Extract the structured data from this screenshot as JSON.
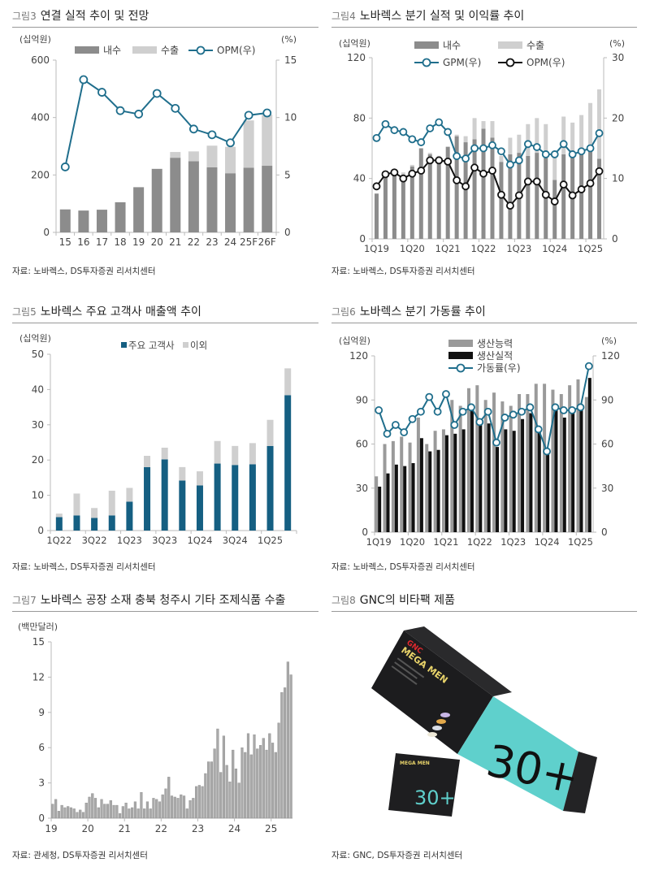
{
  "figures": [
    {
      "num": "그림3",
      "title": "연결 실적 추이 및 전망",
      "source": "자료: 노바렉스, DS투자증권 리서치센터"
    },
    {
      "num": "그림4",
      "title": "노바렉스 분기 실적 및 이익률 추이",
      "source": "자료: 노바렉스, DS투자증권 리서치센터"
    },
    {
      "num": "그림5",
      "title": "노바렉스 주요 고객사 매출액 추이",
      "source": "자료: 노바렉스, DS투자증권 리서치센터"
    },
    {
      "num": "그림6",
      "title": "노바렉스 분기 가동률 추이",
      "source": "자료: 노바렉스, DS투자증권 리서치센터"
    },
    {
      "num": "그림7",
      "title": "노바렉스 공장 소재 충북 청주시 기타 조제식품 수출",
      "source": "자료: 관세청, DS투자증권 리서치센터"
    },
    {
      "num": "그림8",
      "title": "GNC의 비타팩 제품",
      "source": "자료: GNC, DS투자증권 리서치센터"
    }
  ],
  "product_image": {
    "brand": "GNC",
    "name": "MEGA MEN",
    "badge": "30+",
    "pouch_badge": "30+",
    "colors": {
      "box": "#1c1c1e",
      "teal": "#5fd0cc"
    }
  },
  "colors": {
    "domestic": "#8c8c8c",
    "export": "#cfcfcf",
    "line_teal": "#1f6e8c",
    "major": "#155f82",
    "other": "#cfcfcf",
    "capacity": "#9a9a9a",
    "actual": "#111111",
    "opm_black": "#111111"
  },
  "chart_data": [
    {
      "type": "bar+line",
      "stacked": true,
      "ylabel": "(십억원)",
      "y2label": "(%)",
      "ylim": [
        0,
        600
      ],
      "y2lim": [
        0,
        15
      ],
      "yticks": [
        0,
        200,
        400,
        600
      ],
      "y2ticks": [
        0,
        5,
        10,
        15
      ],
      "categories": [
        "15",
        "16",
        "17",
        "18",
        "19",
        "20",
        "21",
        "22",
        "23",
        "24",
        "25F",
        "26F"
      ],
      "series": [
        {
          "name": "내수",
          "kind": "bar",
          "values": [
            80,
            76,
            79,
            105,
            157,
            221,
            260,
            248,
            227,
            206,
            225,
            232
          ]
        },
        {
          "name": "수출",
          "kind": "bar",
          "values": [
            0,
            0,
            0,
            0,
            1,
            1,
            20,
            34,
            75,
            92,
            165,
            178
          ]
        },
        {
          "name": "OPM(우)",
          "kind": "line",
          "axis": "right",
          "values": [
            5.7,
            13.3,
            12.2,
            10.6,
            10.3,
            12.1,
            10.8,
            9.0,
            8.5,
            7.8,
            10.2,
            10.4
          ]
        }
      ],
      "legend": "top",
      "grid": false
    },
    {
      "type": "bar+line",
      "stacked": true,
      "ylabel": "(십억원)",
      "y2label": "(%)",
      "ylim": [
        0,
        120
      ],
      "y2lim": [
        0,
        30
      ],
      "yticks": [
        0,
        40,
        80,
        120
      ],
      "y2ticks": [
        0,
        10,
        20,
        30
      ],
      "categories": [
        "1Q19",
        "2Q19",
        "3Q19",
        "4Q19",
        "1Q20",
        "2Q20",
        "3Q20",
        "4Q20",
        "1Q21",
        "2Q21",
        "3Q21",
        "4Q21",
        "1Q22",
        "2Q22",
        "3Q22",
        "4Q22",
        "1Q23",
        "2Q23",
        "3Q23",
        "4Q23",
        "1Q24",
        "2Q24",
        "3Q24",
        "4Q24",
        "1Q25",
        "2Q25"
      ],
      "xticklabels": [
        "1Q19",
        "1Q20",
        "1Q21",
        "1Q22",
        "1Q23",
        "1Q24",
        "1Q25"
      ],
      "series": [
        {
          "name": "내수",
          "kind": "bar",
          "values": [
            30,
            42,
            44,
            40,
            48,
            60,
            56,
            50,
            61,
            68,
            64,
            66,
            73,
            67,
            51,
            56,
            57,
            55,
            57,
            55,
            39,
            56,
            56,
            58,
            60,
            53
          ]
        },
        {
          "name": "수출",
          "kind": "bar",
          "values": [
            0,
            0,
            0,
            4,
            1,
            0,
            1,
            5,
            0,
            1,
            4,
            14,
            5,
            11,
            4,
            11,
            12,
            21,
            23,
            21,
            16,
            25,
            21,
            24,
            30,
            46
          ]
        },
        {
          "name": "GPM(우)",
          "kind": "line",
          "axis": "right",
          "values": [
            16.7,
            19.0,
            18.0,
            17.7,
            16.5,
            16.0,
            18.3,
            19.3,
            17.7,
            13.7,
            13.3,
            15.0,
            15.0,
            15.5,
            14.5,
            12.3,
            13.0,
            15.7,
            15.2,
            14.0,
            14.0,
            15.7,
            14.0,
            14.5,
            15.0,
            17.5
          ]
        },
        {
          "name": "OPM(우)",
          "kind": "line",
          "axis": "right",
          "values": [
            8.7,
            10.7,
            11.0,
            10.0,
            10.8,
            11.3,
            13.0,
            13.0,
            12.8,
            9.7,
            8.7,
            11.8,
            10.8,
            11.3,
            7.3,
            5.5,
            7.2,
            9.5,
            9.5,
            7.3,
            6.2,
            9.0,
            7.2,
            8.2,
            9.2,
            11.2
          ]
        }
      ],
      "legend": "top",
      "grid": false
    },
    {
      "type": "bar",
      "stacked": true,
      "ylabel": "(십억원)",
      "ylim": [
        0,
        50
      ],
      "yticks": [
        0,
        10,
        20,
        30,
        40,
        50
      ],
      "categories": [
        "1Q22",
        "2Q22",
        "3Q22",
        "4Q22",
        "1Q23",
        "2Q23",
        "3Q23",
        "4Q23",
        "1Q24",
        "2Q24",
        "3Q24",
        "4Q24",
        "1Q25",
        "2Q25"
      ],
      "xticklabels": [
        "1Q22",
        "3Q22",
        "1Q23",
        "3Q23",
        "1Q24",
        "3Q24",
        "1Q25"
      ],
      "series": [
        {
          "name": "주요 고객사",
          "values": [
            3.8,
            4.3,
            3.6,
            4.3,
            8.2,
            18.0,
            20.2,
            14.2,
            12.8,
            19.0,
            18.6,
            18.8,
            24.0,
            38.4
          ]
        },
        {
          "name": "이외",
          "values": [
            1.0,
            6.2,
            2.8,
            7.0,
            3.9,
            3.2,
            3.3,
            3.8,
            4.0,
            6.4,
            5.4,
            6.0,
            7.4,
            7.6
          ]
        }
      ],
      "legend": "top",
      "grid": false
    },
    {
      "type": "bar+line",
      "stacked": false,
      "ylabel": "(십억원)",
      "y2label": "(%)",
      "ylim": [
        0,
        120
      ],
      "y2lim": [
        0,
        120
      ],
      "yticks": [
        0,
        30,
        60,
        90,
        120
      ],
      "y2ticks": [
        0,
        30,
        60,
        90,
        120
      ],
      "categories": [
        "1Q19",
        "2Q19",
        "3Q19",
        "4Q19",
        "1Q20",
        "2Q20",
        "3Q20",
        "4Q20",
        "1Q21",
        "2Q21",
        "3Q21",
        "4Q21",
        "1Q22",
        "2Q22",
        "3Q22",
        "4Q22",
        "1Q23",
        "2Q23",
        "3Q23",
        "4Q23",
        "1Q24",
        "2Q24",
        "3Q24",
        "4Q24",
        "1Q25",
        "2Q25"
      ],
      "xticklabels": [
        "1Q19",
        "1Q20",
        "1Q21",
        "1Q22",
        "1Q23",
        "1Q24",
        "1Q25"
      ],
      "series": [
        {
          "name": "생산능력",
          "kind": "bar",
          "values": [
            38,
            60,
            62,
            65,
            61,
            78,
            60,
            69,
            70,
            90,
            86,
            98,
            100,
            90,
            95,
            89,
            86,
            94,
            94,
            101,
            101,
            97,
            94,
            100,
            104,
            92
          ]
        },
        {
          "name": "생산실적",
          "kind": "bar",
          "values": [
            31,
            40,
            46,
            45,
            47,
            64,
            55,
            56,
            66,
            67,
            70,
            84,
            73,
            74,
            58,
            70,
            69,
            77,
            81,
            70,
            54,
            83,
            78,
            81,
            85,
            105
          ]
        },
        {
          "name": "가동률(우)",
          "kind": "line",
          "axis": "right",
          "values": [
            83,
            67,
            73,
            68,
            77,
            82,
            92,
            82,
            94,
            73,
            82,
            85,
            75,
            82,
            61,
            78,
            80,
            82,
            85,
            70,
            55,
            85,
            83,
            83,
            85,
            113
          ]
        }
      ],
      "legend": "top",
      "grid": false
    },
    {
      "type": "bar",
      "ylabel": "(백만달러)",
      "ylim": [
        0,
        15
      ],
      "yticks": [
        0,
        3,
        6,
        9,
        12,
        15
      ],
      "xticklabels": [
        "19",
        "20",
        "21",
        "22",
        "23",
        "24",
        "25"
      ],
      "x_start": "2019-01",
      "x_freq": "monthly",
      "values": [
        1.2,
        1.6,
        0.6,
        1.1,
        0.9,
        1.0,
        0.9,
        0.8,
        0.5,
        0.7,
        0.5,
        1.3,
        1.8,
        2.1,
        1.7,
        0.9,
        1.6,
        1.2,
        1.2,
        1.5,
        1.1,
        1.1,
        0.4,
        1.0,
        1.3,
        0.8,
        0.9,
        1.4,
        0.8,
        2.2,
        0.8,
        1.4,
        0.8,
        1.7,
        1.6,
        1.4,
        2.0,
        2.5,
        3.5,
        1.9,
        1.8,
        1.7,
        2.0,
        1.9,
        0.8,
        1.5,
        1.7,
        2.7,
        2.8,
        2.7,
        3.8,
        4.8,
        4.8,
        5.9,
        7.6,
        3.9,
        7.0,
        4.5,
        3.1,
        5.8,
        4.2,
        3.0,
        6.0,
        5.6,
        7.2,
        5.4,
        7.1,
        5.9,
        6.2,
        6.8,
        5.8,
        7.2,
        6.4,
        5.6,
        8.1,
        10.7,
        11.1,
        13.3,
        12.2
      ],
      "legend": "none",
      "grid": false
    }
  ]
}
